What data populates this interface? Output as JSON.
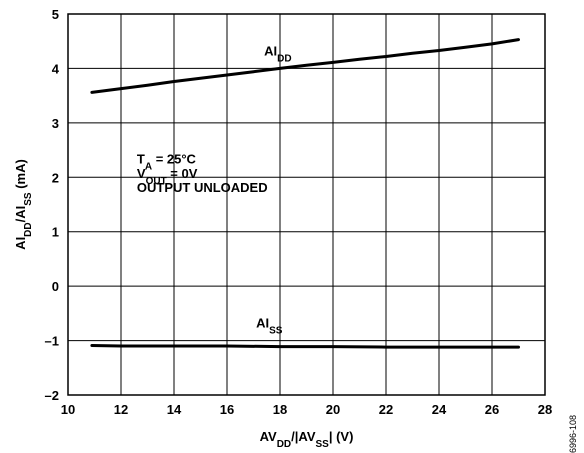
{
  "chart_data": {
    "type": "line",
    "title": "",
    "xlabel": {
      "parts": [
        [
          "AV",
          ""
        ],
        [
          "DD",
          "sub"
        ],
        [
          "/|AV",
          ""
        ],
        [
          "SS",
          "sub"
        ],
        [
          "| (V)",
          ""
        ]
      ]
    },
    "ylabel": {
      "parts": [
        [
          "AI",
          ""
        ],
        [
          "DD",
          "sub"
        ],
        [
          "/AI",
          ""
        ],
        [
          "SS",
          "sub"
        ],
        [
          " (mA)",
          ""
        ]
      ]
    },
    "xlim": [
      10,
      28
    ],
    "ylim": [
      -2,
      5
    ],
    "xticks": [
      10,
      12,
      14,
      16,
      18,
      20,
      22,
      24,
      26,
      28
    ],
    "yticks": [
      -2,
      -1,
      0,
      1,
      2,
      3,
      4,
      5
    ],
    "xtick_labels": [
      "10",
      "12",
      "14",
      "16",
      "18",
      "20",
      "22",
      "24",
      "26",
      "28"
    ],
    "ytick_labels": [
      "–2",
      "–1",
      "0",
      "1",
      "2",
      "3",
      "4",
      "5"
    ],
    "grid": true,
    "series": [
      {
        "name": "AI_DD",
        "label_parts": [
          [
            "AI",
            ""
          ],
          [
            "DD",
            "sub"
          ]
        ],
        "x": [
          10.9,
          12,
          13,
          14,
          15,
          16,
          17,
          18,
          19,
          20,
          21,
          22,
          23,
          24,
          25,
          26,
          27
        ],
        "values": [
          3.56,
          3.63,
          3.69,
          3.76,
          3.82,
          3.88,
          3.94,
          4.0,
          4.06,
          4.11,
          4.17,
          4.22,
          4.28,
          4.33,
          4.39,
          4.45,
          4.53
        ]
      },
      {
        "name": "AI_SS",
        "label_parts": [
          [
            "AI",
            ""
          ],
          [
            "SS",
            "sub"
          ]
        ],
        "x": [
          10.9,
          12,
          14,
          16,
          18,
          20,
          22,
          24,
          26,
          27
        ],
        "values": [
          -1.09,
          -1.1,
          -1.1,
          -1.1,
          -1.11,
          -1.11,
          -1.12,
          -1.12,
          -1.12,
          -1.12
        ]
      }
    ],
    "annotations": {
      "conditions": [
        [
          [
            "T",
            ""
          ],
          [
            "A",
            "sub"
          ],
          [
            " = 25°C",
            ""
          ]
        ],
        [
          [
            "V",
            ""
          ],
          [
            "OUT",
            "sub"
          ],
          [
            " = 0V",
            ""
          ]
        ],
        [
          [
            "OUTPUT UNLOADED",
            ""
          ]
        ]
      ],
      "figure_id": "06996-108"
    }
  }
}
